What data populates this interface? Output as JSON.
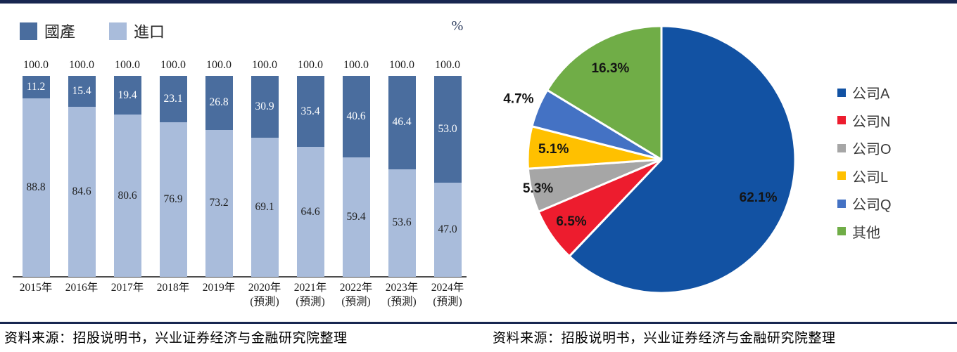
{
  "page": {
    "accent_navy": "#182650",
    "axis_color": "#4d4d4d"
  },
  "chart_data": [
    {
      "type": "bar",
      "stacked": true,
      "unit_label": "%",
      "ylim": [
        0,
        100
      ],
      "grid": false,
      "legend_position": "top-left",
      "legend": [
        {
          "name": "國產",
          "color": "#4A6D9E"
        },
        {
          "name": "進口",
          "color": "#A9BCDB"
        }
      ],
      "categories": [
        "2015年",
        "2016年",
        "2017年",
        "2018年",
        "2019年",
        "2020年",
        "2021年",
        "2022年",
        "2023年",
        "2024年"
      ],
      "category_suffix": [
        "",
        "",
        "",
        "",
        "",
        "(預測)",
        "(預測)",
        "(預測)",
        "(預測)",
        "(預測)"
      ],
      "series": [
        {
          "name": "國產",
          "color": "#4A6D9E",
          "text_color": "#ffffff",
          "values": [
            11.2,
            15.4,
            19.4,
            23.1,
            26.8,
            30.9,
            35.4,
            40.6,
            46.4,
            53.0
          ]
        },
        {
          "name": "進口",
          "color": "#A9BCDB",
          "text_color": "#1f1f1f",
          "values": [
            88.8,
            84.6,
            80.6,
            76.9,
            73.2,
            69.1,
            64.6,
            59.4,
            53.6,
            47.0
          ]
        }
      ],
      "total_label": "100.0"
    },
    {
      "type": "pie",
      "start_angle_deg": 0,
      "direction": "clockwise",
      "legend_position": "right",
      "slices": [
        {
          "label": "公司A",
          "value": 62.1,
          "display": "62.1%",
          "color": "#1252A3"
        },
        {
          "label": "公司N",
          "value": 6.5,
          "display": "6.5%",
          "color": "#ED1C2E"
        },
        {
          "label": "公司O",
          "value": 5.3,
          "display": "5.3%",
          "color": "#A6A6A6"
        },
        {
          "label": "公司L",
          "value": 5.1,
          "display": "5.1%",
          "color": "#FFC000"
        },
        {
          "label": "公司Q",
          "value": 4.7,
          "display": "4.7%",
          "color": "#4472C4"
        },
        {
          "label": "其他",
          "value": 16.3,
          "display": "16.3%",
          "color": "#70AD47"
        }
      ]
    }
  ],
  "sources": {
    "left": "资料来源：招股说明书，兴业证券经济与金融研究院整理",
    "right": "资料来源：招股说明书，兴业证券经济与金融研究院整理"
  }
}
